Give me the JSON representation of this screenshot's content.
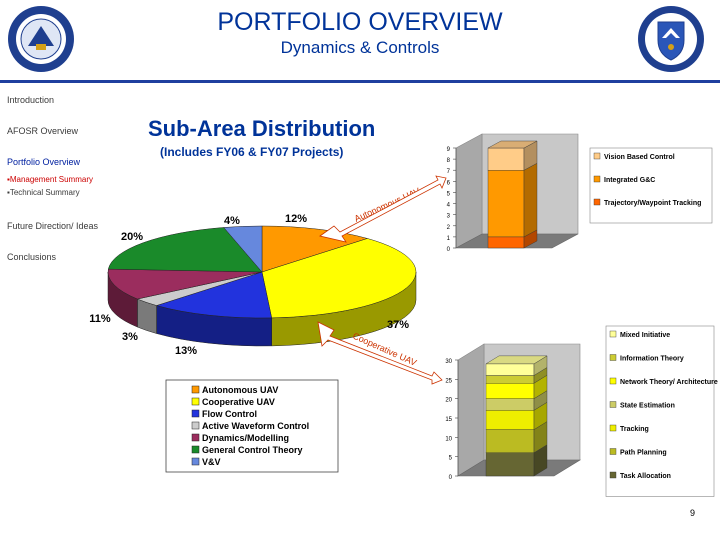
{
  "header": {
    "title": "PORTFOLIO OVERVIEW",
    "subtitle": "Dynamics & Controls",
    "rule_color": "#1f3f9f",
    "title_color": "#003399"
  },
  "sidebar": {
    "items": [
      {
        "label": "Introduction"
      },
      {
        "label": "AFOSR Overview"
      },
      {
        "label": "Portfolio Overview"
      },
      {
        "label": "Management Summary"
      },
      {
        "label": "Technical Summary"
      },
      {
        "label": "Future Direction/ Ideas"
      },
      {
        "label": "Conclusions"
      }
    ]
  },
  "slide": {
    "heading": "Sub-Area Distribution",
    "subheading": "(Includes FY06 & FY07 Projects)",
    "page_number": "9"
  },
  "callouts": {
    "uav": "Autonomous UAV",
    "coop": "Cooperative UAV"
  },
  "chart_data": [
    {
      "type": "pie",
      "categories": [
        "Autonomous UAV",
        "Cooperative UAV",
        "Flow Control",
        "Active Waveform Control",
        "Dynamics/Modelling",
        "General Control Theory",
        "V&V"
      ],
      "values": [
        12,
        37,
        13,
        3,
        11,
        20,
        4
      ],
      "value_labels": [
        "12%",
        "37%",
        "13%",
        "3%",
        "11%",
        "20%",
        "4%"
      ],
      "colors": [
        "#ff9900",
        "#ffff00",
        "#2233dd",
        "#cccccc",
        "#9b2d5e",
        "#1a8a2a",
        "#6688dd"
      ],
      "legend": "bottom"
    },
    {
      "type": "bar",
      "stacked": true,
      "categories": [
        ""
      ],
      "series": [
        {
          "name": "Vision Based Control",
          "values": [
            2
          ],
          "color": "#ffcc88"
        },
        {
          "name": "Integrated G&C",
          "values": [
            6
          ],
          "color": "#ff9900"
        },
        {
          "name": "Trajectory/Waypoint Tracking",
          "values": [
            1
          ],
          "color": "#ff6600"
        }
      ],
      "ylim": [
        0,
        9
      ],
      "yticks": [
        "0",
        "1",
        "2",
        "3",
        "4",
        "5",
        "6",
        "7",
        "8",
        "9"
      ],
      "legend": "right"
    },
    {
      "type": "bar",
      "stacked": true,
      "categories": [
        ""
      ],
      "series": [
        {
          "name": "Mixed Initiative",
          "values": [
            3
          ],
          "color": "#ffff99"
        },
        {
          "name": "Information Theory",
          "values": [
            2
          ],
          "color": "#cccc33"
        },
        {
          "name": "Network Theory/ Architecture",
          "values": [
            4
          ],
          "color": "#ffff00"
        },
        {
          "name": "State Estimation",
          "values": [
            3
          ],
          "color": "#cccc66"
        },
        {
          "name": "Tracking",
          "values": [
            5
          ],
          "color": "#eeee00"
        },
        {
          "name": "Path Planning",
          "values": [
            6
          ],
          "color": "#bbbb22"
        },
        {
          "name": "Task Allocation",
          "values": [
            6
          ],
          "color": "#666633"
        }
      ],
      "ylim": [
        0,
        30
      ],
      "yticks": [
        "0",
        "5",
        "10",
        "15",
        "20",
        "25",
        "30"
      ],
      "legend": "right"
    }
  ]
}
